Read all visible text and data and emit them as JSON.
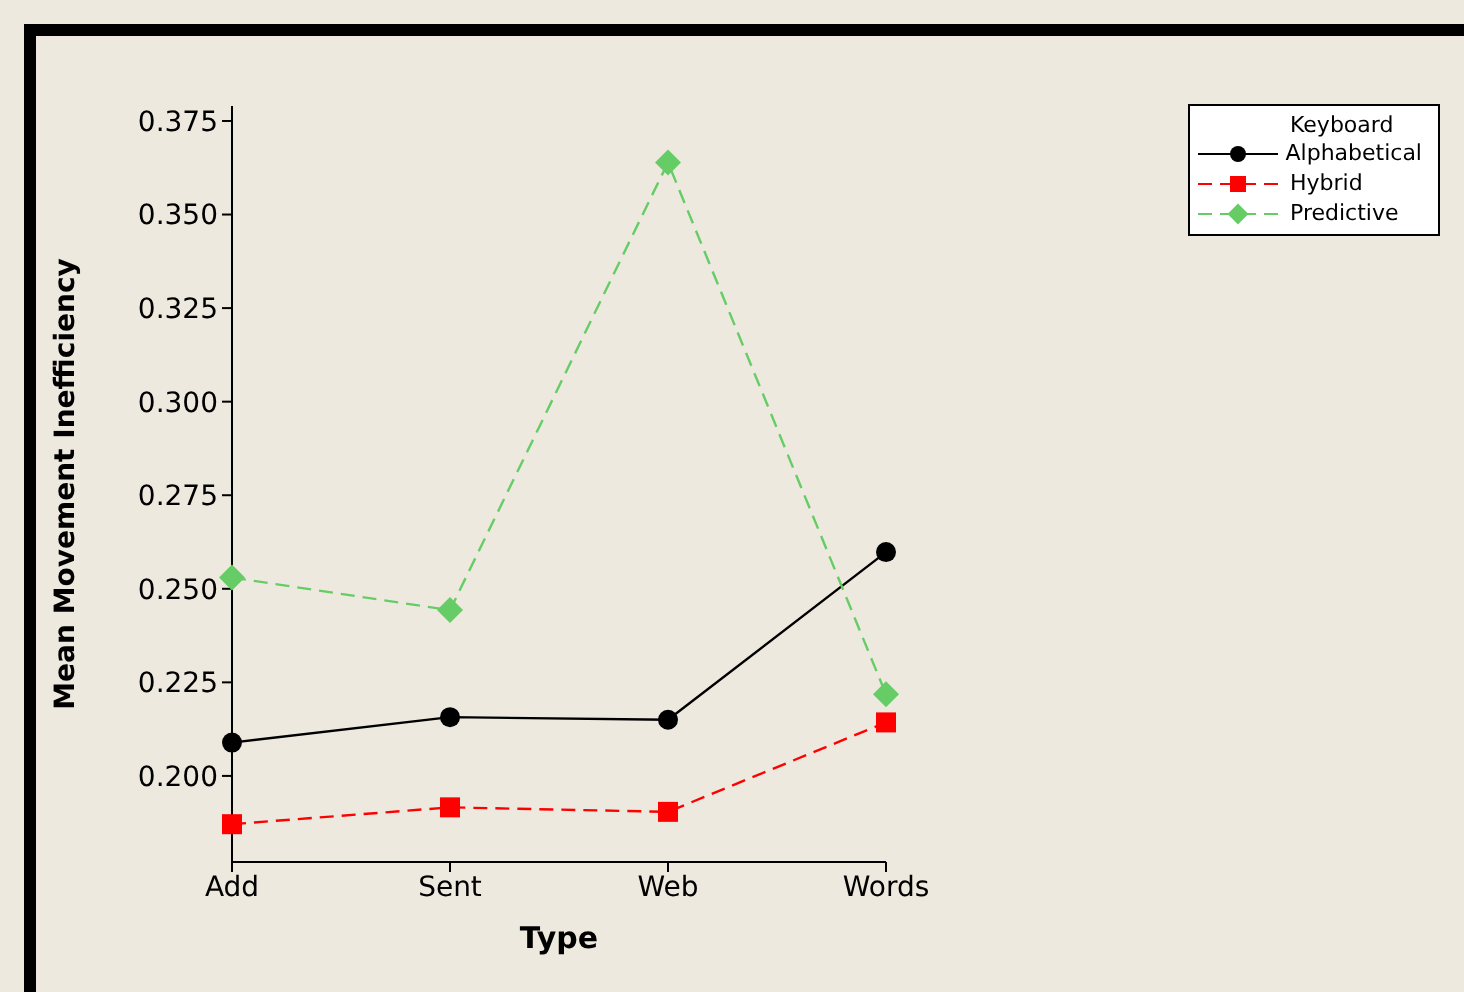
{
  "chart_data": {
    "type": "line",
    "xlabel": "Type",
    "ylabel": "Mean Movement Inefficiency",
    "legend_title": "Keyboard",
    "legend": "top right",
    "grid": false,
    "categories": [
      "Add",
      "Sent",
      "Web",
      "Words"
    ],
    "ylim": [
      0.177,
      0.379
    ],
    "yticks": [
      {
        "value": 0.2,
        "label": "0.200"
      },
      {
        "value": 0.225,
        "label": "0.225"
      },
      {
        "value": 0.25,
        "label": "0.250"
      },
      {
        "value": 0.275,
        "label": "0.275"
      },
      {
        "value": 0.3,
        "label": "0.300"
      },
      {
        "value": 0.325,
        "label": "0.325"
      },
      {
        "value": 0.35,
        "label": "0.350"
      },
      {
        "value": 0.375,
        "label": "0.375"
      }
    ],
    "series": [
      {
        "name": "Alphabetical",
        "color": "#000000",
        "marker": "circle",
        "line_style": "solid",
        "values": [
          0.2089,
          0.2157,
          0.215,
          0.2598
        ]
      },
      {
        "name": "Hybrid",
        "color": "#ff0000",
        "marker": "square",
        "line_style": "dashed",
        "values": [
          0.1871,
          0.1916,
          0.1904,
          0.2143
        ]
      },
      {
        "name": "Predictive",
        "color": "#66cc66",
        "marker": "diamond",
        "line_style": "dashed",
        "values": [
          0.253,
          0.2443,
          0.3639,
          0.2218
        ]
      }
    ]
  }
}
